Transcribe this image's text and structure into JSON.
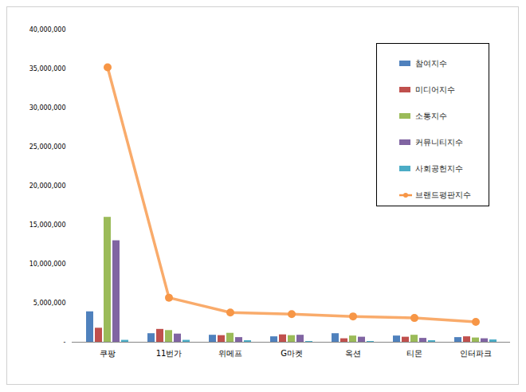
{
  "chart_data": {
    "type": "bar",
    "categories": [
      "쿠팡",
      "11번가",
      "위메프",
      "G마켓",
      "옥션",
      "티몬",
      "인터파크"
    ],
    "series": [
      {
        "name": "참여지수",
        "color": "#4F81BD",
        "values": [
          3900000,
          1100000,
          900000,
          700000,
          1100000,
          800000,
          600000
        ]
      },
      {
        "name": "미디어지수",
        "color": "#C0504D",
        "values": [
          1800000,
          1650000,
          850000,
          950000,
          450000,
          650000,
          700000
        ]
      },
      {
        "name": "소통지수",
        "color": "#9BBB59",
        "values": [
          16000000,
          1500000,
          1150000,
          850000,
          800000,
          900000,
          550000
        ]
      },
      {
        "name": "커뮤니티지수",
        "color": "#8064A2",
        "values": [
          13000000,
          1050000,
          600000,
          900000,
          650000,
          500000,
          450000
        ]
      },
      {
        "name": "사회공헌지수",
        "color": "#4BACC6",
        "values": [
          250000,
          250000,
          200000,
          100000,
          100000,
          200000,
          300000
        ]
      },
      {
        "name": "브랜드평판지수",
        "color": "#F79646",
        "type": "line",
        "marker": "circle",
        "values": [
          35200000,
          5700000,
          3800000,
          3600000,
          3300000,
          3100000,
          2600000
        ]
      }
    ],
    "ylim": [
      0,
      40000000
    ],
    "yticks": [
      {
        "value": 0,
        "label": "-"
      },
      {
        "value": 5000000,
        "label": "5,000,000"
      },
      {
        "value": 10000000,
        "label": "10,000,000"
      },
      {
        "value": 15000000,
        "label": "15,000,000"
      },
      {
        "value": 20000000,
        "label": "20,000,000"
      },
      {
        "value": 25000000,
        "label": "25,000,000"
      },
      {
        "value": 30000000,
        "label": "30,000,000"
      },
      {
        "value": 35000000,
        "label": "35,000,000"
      },
      {
        "value": 40000000,
        "label": "40,000,000"
      }
    ],
    "grid": false,
    "legend": "upper right"
  }
}
